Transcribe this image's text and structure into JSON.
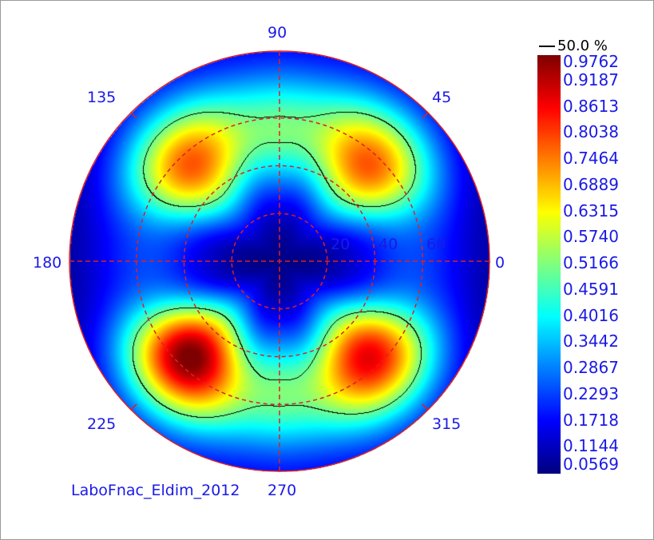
{
  "chart_data": {
    "type": "heatmap",
    "projection": "polar",
    "title": "",
    "footer_label": "LaboFnac_Eldim_2012",
    "angle_labels": [
      "0",
      "45",
      "90",
      "135",
      "180",
      "225",
      "270",
      "315"
    ],
    "radial_labels": [
      "20",
      "40",
      "60"
    ],
    "radial_max": 88,
    "contour": {
      "label": "50.0 %",
      "level": 0.5,
      "color": "#000000"
    },
    "colorbar": {
      "min": 0.0569,
      "max": 0.9762,
      "ticks": [
        "0.9762",
        "0.9187",
        "0.8613",
        "0.8038",
        "0.7464",
        "0.6889",
        "0.6315",
        "0.5740",
        "0.5166",
        "0.4591",
        "0.4016",
        "0.3442",
        "0.2867",
        "0.2293",
        "0.1718",
        "0.1144",
        "0.0569"
      ],
      "colormap": "jet"
    },
    "features": [
      {
        "azimuth": 45,
        "polar": 55,
        "value": 0.76
      },
      {
        "azimuth": 135,
        "polar": 55,
        "value": 0.76
      },
      {
        "azimuth": 225,
        "polar": 55,
        "value": 0.97
      },
      {
        "azimuth": 315,
        "polar": 55,
        "value": 0.86
      },
      {
        "azimuth": 0,
        "polar": 0,
        "value": 0.06
      }
    ],
    "grid_color": "#e02020",
    "label_color": "#1a1ae6"
  }
}
